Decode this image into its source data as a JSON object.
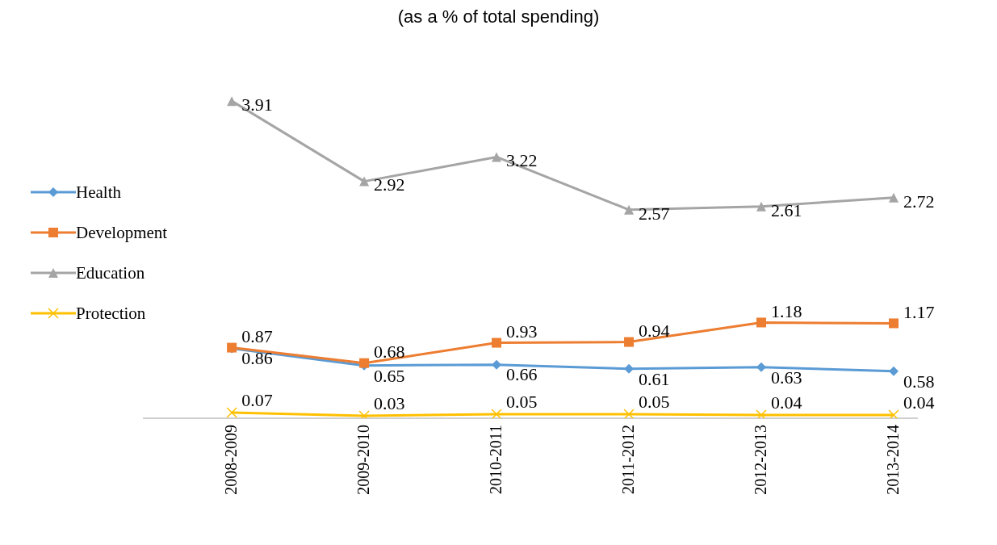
{
  "chart_data": {
    "type": "line",
    "title": "(as a % of total spending)",
    "categories": [
      "2008-2009",
      "2009-2010",
      "2010-2011",
      "2011-2012",
      "2012-2013",
      "2013-2014"
    ],
    "series": [
      {
        "name": "Health",
        "color": "#5b9bd5",
        "marker": "diamond",
        "values": [
          0.86,
          0.65,
          0.66,
          0.61,
          0.63,
          0.58
        ]
      },
      {
        "name": "Development",
        "color": "#ed7d31",
        "marker": "square",
        "values": [
          0.87,
          0.68,
          0.93,
          0.94,
          1.18,
          1.17
        ]
      },
      {
        "name": "Education",
        "color": "#a5a5a5",
        "marker": "triangle",
        "values": [
          3.91,
          2.92,
          3.22,
          2.57,
          2.61,
          2.72
        ]
      },
      {
        "name": "Protection",
        "color": "#ffc000",
        "marker": "cross",
        "values": [
          0.07,
          0.03,
          0.05,
          0.05,
          0.04,
          0.04
        ]
      }
    ],
    "data_labels": true,
    "legend": "left"
  }
}
